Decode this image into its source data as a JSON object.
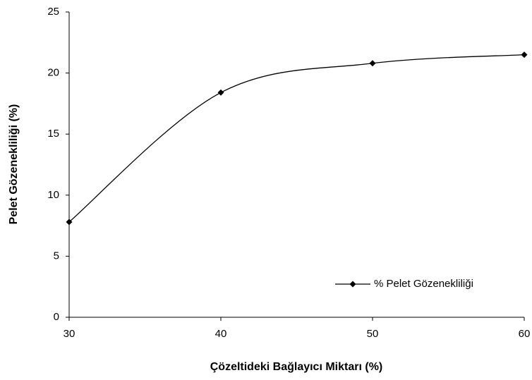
{
  "chart_data": {
    "type": "line",
    "smooth": true,
    "x_label": "Çözeltideki Bağlayıcı Miktarı (%)",
    "y_label": "Pelet Gözenekliliği (%)",
    "x": [
      30,
      40,
      50,
      60
    ],
    "series": [
      {
        "name": "% Pelet Gözenekliliği",
        "color": "#000000",
        "marker": "diamond",
        "values": [
          7.8,
          18.4,
          20.8,
          21.5
        ]
      }
    ],
    "xlim": [
      30,
      60
    ],
    "xticks": [
      30,
      40,
      50,
      60
    ],
    "ylim": [
      0,
      25
    ],
    "yticks": [
      0,
      5,
      10,
      15,
      20,
      25
    ],
    "grid": false,
    "legend": "lower right"
  }
}
